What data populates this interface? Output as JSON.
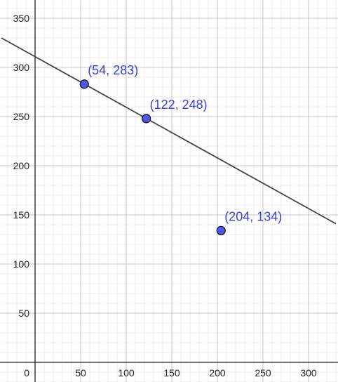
{
  "chart_data": {
    "type": "scatter",
    "title": "",
    "xlabel": "",
    "ylabel": "",
    "xlim": [
      -37,
      330
    ],
    "ylim": [
      -20,
      370
    ],
    "grid": true,
    "x_ticks": [
      {
        "value": 0,
        "label": "0"
      },
      {
        "value": 50,
        "label": "50"
      },
      {
        "value": 100,
        "label": "100"
      },
      {
        "value": 150,
        "label": "150"
      },
      {
        "value": 200,
        "label": "200"
      },
      {
        "value": 250,
        "label": "250"
      },
      {
        "value": 300,
        "label": "300"
      }
    ],
    "y_ticks": [
      {
        "value": 50,
        "label": "50"
      },
      {
        "value": 100,
        "label": "100"
      },
      {
        "value": 150,
        "label": "150"
      },
      {
        "value": 200,
        "label": "200"
      },
      {
        "value": 250,
        "label": "250"
      },
      {
        "value": 300,
        "label": "300"
      },
      {
        "value": 350,
        "label": "350"
      }
    ],
    "points": [
      {
        "x": 54,
        "y": 283,
        "label": "(54, 283)"
      },
      {
        "x": 122,
        "y": 248,
        "label": "(122, 248)"
      },
      {
        "x": 204,
        "y": 134,
        "label": "(204, 134)"
      }
    ],
    "line": {
      "x1": -37,
      "y1": 330,
      "x2": 330,
      "y2": 141
    },
    "colors": {
      "point_fill": "#5057f0",
      "point_stroke": "#1a1a1a",
      "label": "#3b3fd8",
      "line": "#444444",
      "grid_major": "#c4c4c4",
      "grid_minor": "#ececec",
      "axis": "#222222"
    }
  }
}
